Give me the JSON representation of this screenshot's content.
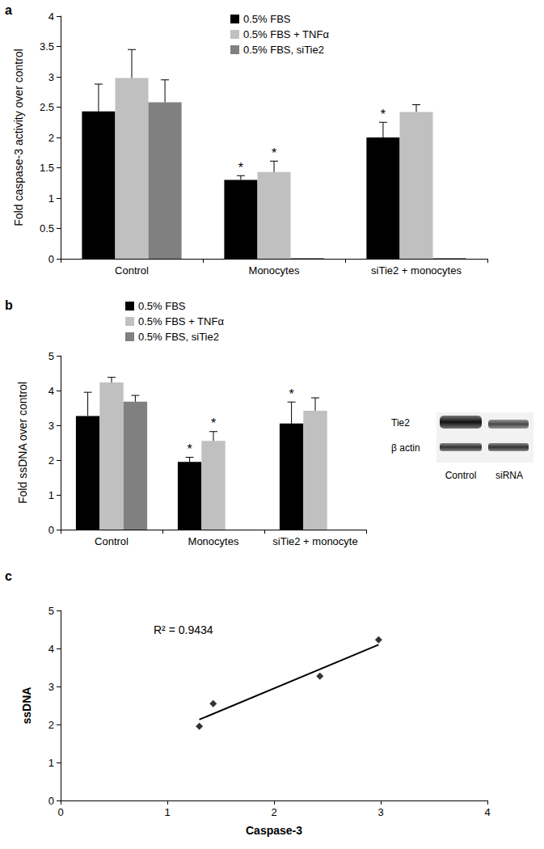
{
  "chart_data": [
    {
      "type": "bar",
      "panel_label": "a",
      "y_label": "Fold caspase-3 activity over control",
      "categories": [
        "Control",
        "Monocytes",
        "siTie2 + monocytes"
      ],
      "series": [
        {
          "name": "0.5% FBS",
          "color": "#000000",
          "values": [
            2.43,
            1.3,
            2.0
          ],
          "errors": [
            0.45,
            0.07,
            0.25
          ]
        },
        {
          "name": "0.5% FBS + TNFα",
          "color": "#c0c0c0",
          "values": [
            2.98,
            1.43,
            2.42
          ],
          "errors": [
            0.47,
            0.18,
            0.12
          ]
        },
        {
          "name": "0.5% FBS, siTie2",
          "color": "#808080",
          "values": [
            2.58,
            0,
            0
          ],
          "errors": [
            0.37,
            null,
            null
          ]
        }
      ],
      "ylim": [
        0,
        4
      ],
      "yticks": [
        0,
        0.5,
        1,
        1.5,
        2,
        2.5,
        3,
        3.5,
        4
      ],
      "grid": false,
      "legend": "top",
      "annotations": [
        {
          "text": "*",
          "series": "0.5% FBS",
          "category": "Monocytes"
        },
        {
          "text": "*",
          "series": "0.5% FBS + TNFα",
          "category": "Monocytes"
        },
        {
          "text": "*",
          "series": "0.5% FBS",
          "category": "siTie2 + monocytes"
        }
      ]
    },
    {
      "type": "bar",
      "panel_label": "b",
      "y_label": "Fold ssDNA over control",
      "categories": [
        "Control",
        "Monocytes",
        "siTie2 + monocyte"
      ],
      "series": [
        {
          "name": "0.5% FBS",
          "color": "#000000",
          "values": [
            3.27,
            1.95,
            3.05
          ],
          "errors": [
            0.68,
            0.13,
            0.62
          ]
        },
        {
          "name": "0.5% FBS + TNFα",
          "color": "#c0c0c0",
          "values": [
            4.23,
            2.55,
            3.42
          ],
          "errors": [
            0.15,
            0.27,
            0.37
          ]
        },
        {
          "name": "0.5% FBS, siTie2",
          "color": "#808080",
          "values": [
            3.68,
            null,
            null
          ],
          "errors": [
            0.18,
            null,
            null
          ]
        }
      ],
      "ylim": [
        0,
        5
      ],
      "yticks": [
        0,
        1,
        2,
        3,
        4,
        5
      ],
      "grid": false,
      "legend": "top",
      "annotations": [
        {
          "text": "*",
          "series": "0.5% FBS",
          "category": "Monocytes"
        },
        {
          "text": "*",
          "series": "0.5% FBS + TNFα",
          "category": "Monocytes"
        },
        {
          "text": "*",
          "series": "0.5% FBS",
          "category": "siTie2 + monocyte"
        }
      ]
    },
    {
      "type": "scatter",
      "panel_label": "c",
      "x_label": "Caspase-3",
      "y_label": "ssDNA",
      "x": [
        1.3,
        1.43,
        2.43,
        2.98
      ],
      "values": [
        1.95,
        2.55,
        3.27,
        4.23
      ],
      "color": "#000000",
      "marker": "diamond",
      "trendline": {
        "x": [
          1.3,
          2.98
        ],
        "y": [
          2.13,
          4.1
        ]
      },
      "annotation": "R² = 0.9434",
      "xlim": [
        0,
        4
      ],
      "xticks": [
        0,
        1,
        2,
        3,
        4
      ],
      "ylim": [
        0,
        5
      ],
      "yticks": [
        0,
        1,
        2,
        3,
        4,
        5
      ],
      "grid": false
    }
  ],
  "inset": {
    "rows": [
      "Tie2",
      "β actin"
    ],
    "columns": [
      "Control",
      "siRNA"
    ]
  }
}
